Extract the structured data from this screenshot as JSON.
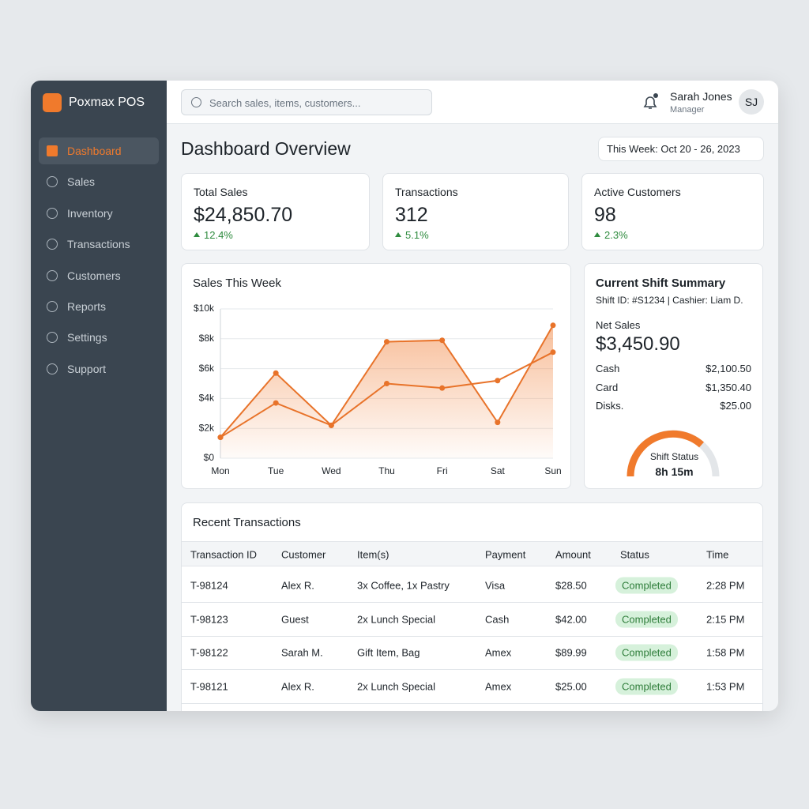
{
  "brand": "Poxmax POS",
  "search_placeholder": "Search sales, items, customers...",
  "user": {
    "name": "Sarah Jones",
    "role": "Manager",
    "initials": "SJ"
  },
  "nav": [
    "Dashboard",
    "Sales",
    "Inventory",
    "Transactions",
    "Customers",
    "Reports",
    "Settings",
    "Support"
  ],
  "page_title": "Dashboard Overview",
  "date_range": "This Week: Oct 20 - 26, 2023",
  "kpis": [
    {
      "label": "Total Sales",
      "value": "$24,850.70",
      "change": "12.4%"
    },
    {
      "label": "Transactions",
      "value": "312",
      "change": "5.1%"
    },
    {
      "label": "Active Customers",
      "value": "98",
      "change": "2.3%"
    }
  ],
  "chart_data": {
    "type": "line",
    "title": "Sales This Week",
    "categories": [
      "Mon",
      "Tue",
      "Wed",
      "Thu",
      "Fri",
      "Sat",
      "Sun"
    ],
    "series": [
      {
        "color": "#e8732a",
        "fill": true,
        "values": [
          1400,
          5700,
          2200,
          7800,
          7900,
          2400,
          8900
        ]
      },
      {
        "color": "#e8732a",
        "fill": false,
        "values": [
          1400,
          3700,
          2200,
          5000,
          4700,
          5200,
          7100
        ]
      }
    ],
    "ylim": [
      0,
      10000
    ],
    "yticks": [
      {
        "value": 0,
        "label": "$0"
      },
      {
        "value": 2000,
        "label": "$2k"
      },
      {
        "value": 4000,
        "label": "$4k"
      },
      {
        "value": 6000,
        "label": "$6k"
      },
      {
        "value": 8000,
        "label": "$8k"
      },
      {
        "value": 10000,
        "label": "$10k"
      }
    ],
    "grid": true
  },
  "shift": {
    "title": "Current Shift Summary",
    "meta": "Shift ID: #S1234 | Cashier: Liam D.",
    "net_label": "Net Sales",
    "net_value": "$3,450.90",
    "rows": [
      [
        "Cash",
        "$2,100.50"
      ],
      [
        "Card",
        "$1,350.40"
      ],
      [
        "Disks.",
        "$25.00"
      ]
    ],
    "status_label": "Shift Status",
    "status_value": "8h 15m"
  },
  "transactions": {
    "title": "Recent Transactions",
    "columns": [
      "Transaction ID",
      "Customer",
      "Item(s)",
      "Payment",
      "Amount",
      "Status",
      "Time"
    ],
    "rows": [
      [
        "T-98124",
        "Alex R.",
        "3x Coffee, 1x Pastry",
        "Visa",
        "$28.50",
        "Completed",
        "2:28 PM"
      ],
      [
        "T-98123",
        "Guest",
        "2x Lunch Special",
        "Cash",
        "$42.00",
        "Completed",
        "2:15 PM"
      ],
      [
        "T-98122",
        "Sarah M.",
        "Gift Item, Bag",
        "Amex",
        "$89.99",
        "Completed",
        "1:58 PM"
      ],
      [
        "T-98121",
        "Alex R.",
        "2x Lunch Special",
        "Amex",
        "$25.00",
        "Completed",
        "1:53 PM"
      ]
    ]
  }
}
